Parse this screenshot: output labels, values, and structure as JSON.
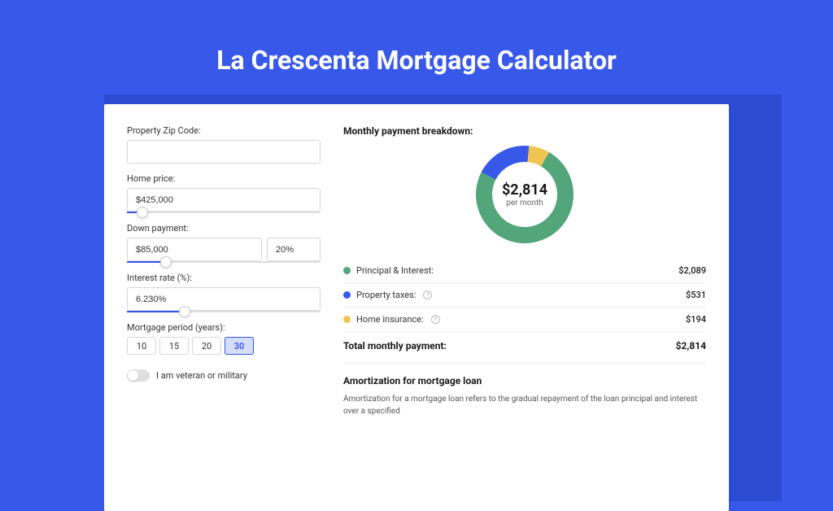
{
  "page": {
    "title": "La Crescenta Mortgage Calculator",
    "background_color": "#3858e9",
    "shadow_color": "#2d4bd1",
    "card_color": "#ffffff"
  },
  "form": {
    "zip_label": "Property Zip Code:",
    "zip_value": "",
    "home_price_label": "Home price:",
    "home_price_value": "$425,000",
    "home_price_slider_pct": 8,
    "down_payment_label": "Down payment:",
    "down_payment_value": "$85,000",
    "down_payment_pct_value": "20%",
    "down_payment_slider_pct": 20,
    "interest_label": "Interest rate (%):",
    "interest_value": "6.230%",
    "interest_slider_pct": 30,
    "period_label": "Mortgage period (years):",
    "period_options": [
      "10",
      "15",
      "20",
      "30"
    ],
    "period_selected_index": 3,
    "veteran_label": "I am veteran or military",
    "veteran_on": false
  },
  "breakdown": {
    "title": "Monthly payment breakdown:",
    "donut": {
      "center_amount": "$2,814",
      "center_label": "per month",
      "radius_outer": 60,
      "radius_inner": 40,
      "segments": [
        {
          "color": "#52a67a",
          "fraction": 0.742
        },
        {
          "color": "#3858e9",
          "fraction": 0.189
        },
        {
          "color": "#eec452",
          "fraction": 0.069
        }
      ],
      "start_angle_deg": -60
    },
    "items": [
      {
        "dot_color": "#52a67a",
        "label": "Principal & Interest:",
        "value": "$2,089",
        "info": false
      },
      {
        "dot_color": "#3858e9",
        "label": "Property taxes:",
        "value": "$531",
        "info": true
      },
      {
        "dot_color": "#eec452",
        "label": "Home insurance:",
        "value": "$194",
        "info": true
      }
    ],
    "total_label": "Total monthly payment:",
    "total_value": "$2,814"
  },
  "amortization": {
    "title": "Amortization for mortgage loan",
    "text": "Amortization for a mortgage loan refers to the gradual repayment of the loan principal and interest over a specified"
  }
}
